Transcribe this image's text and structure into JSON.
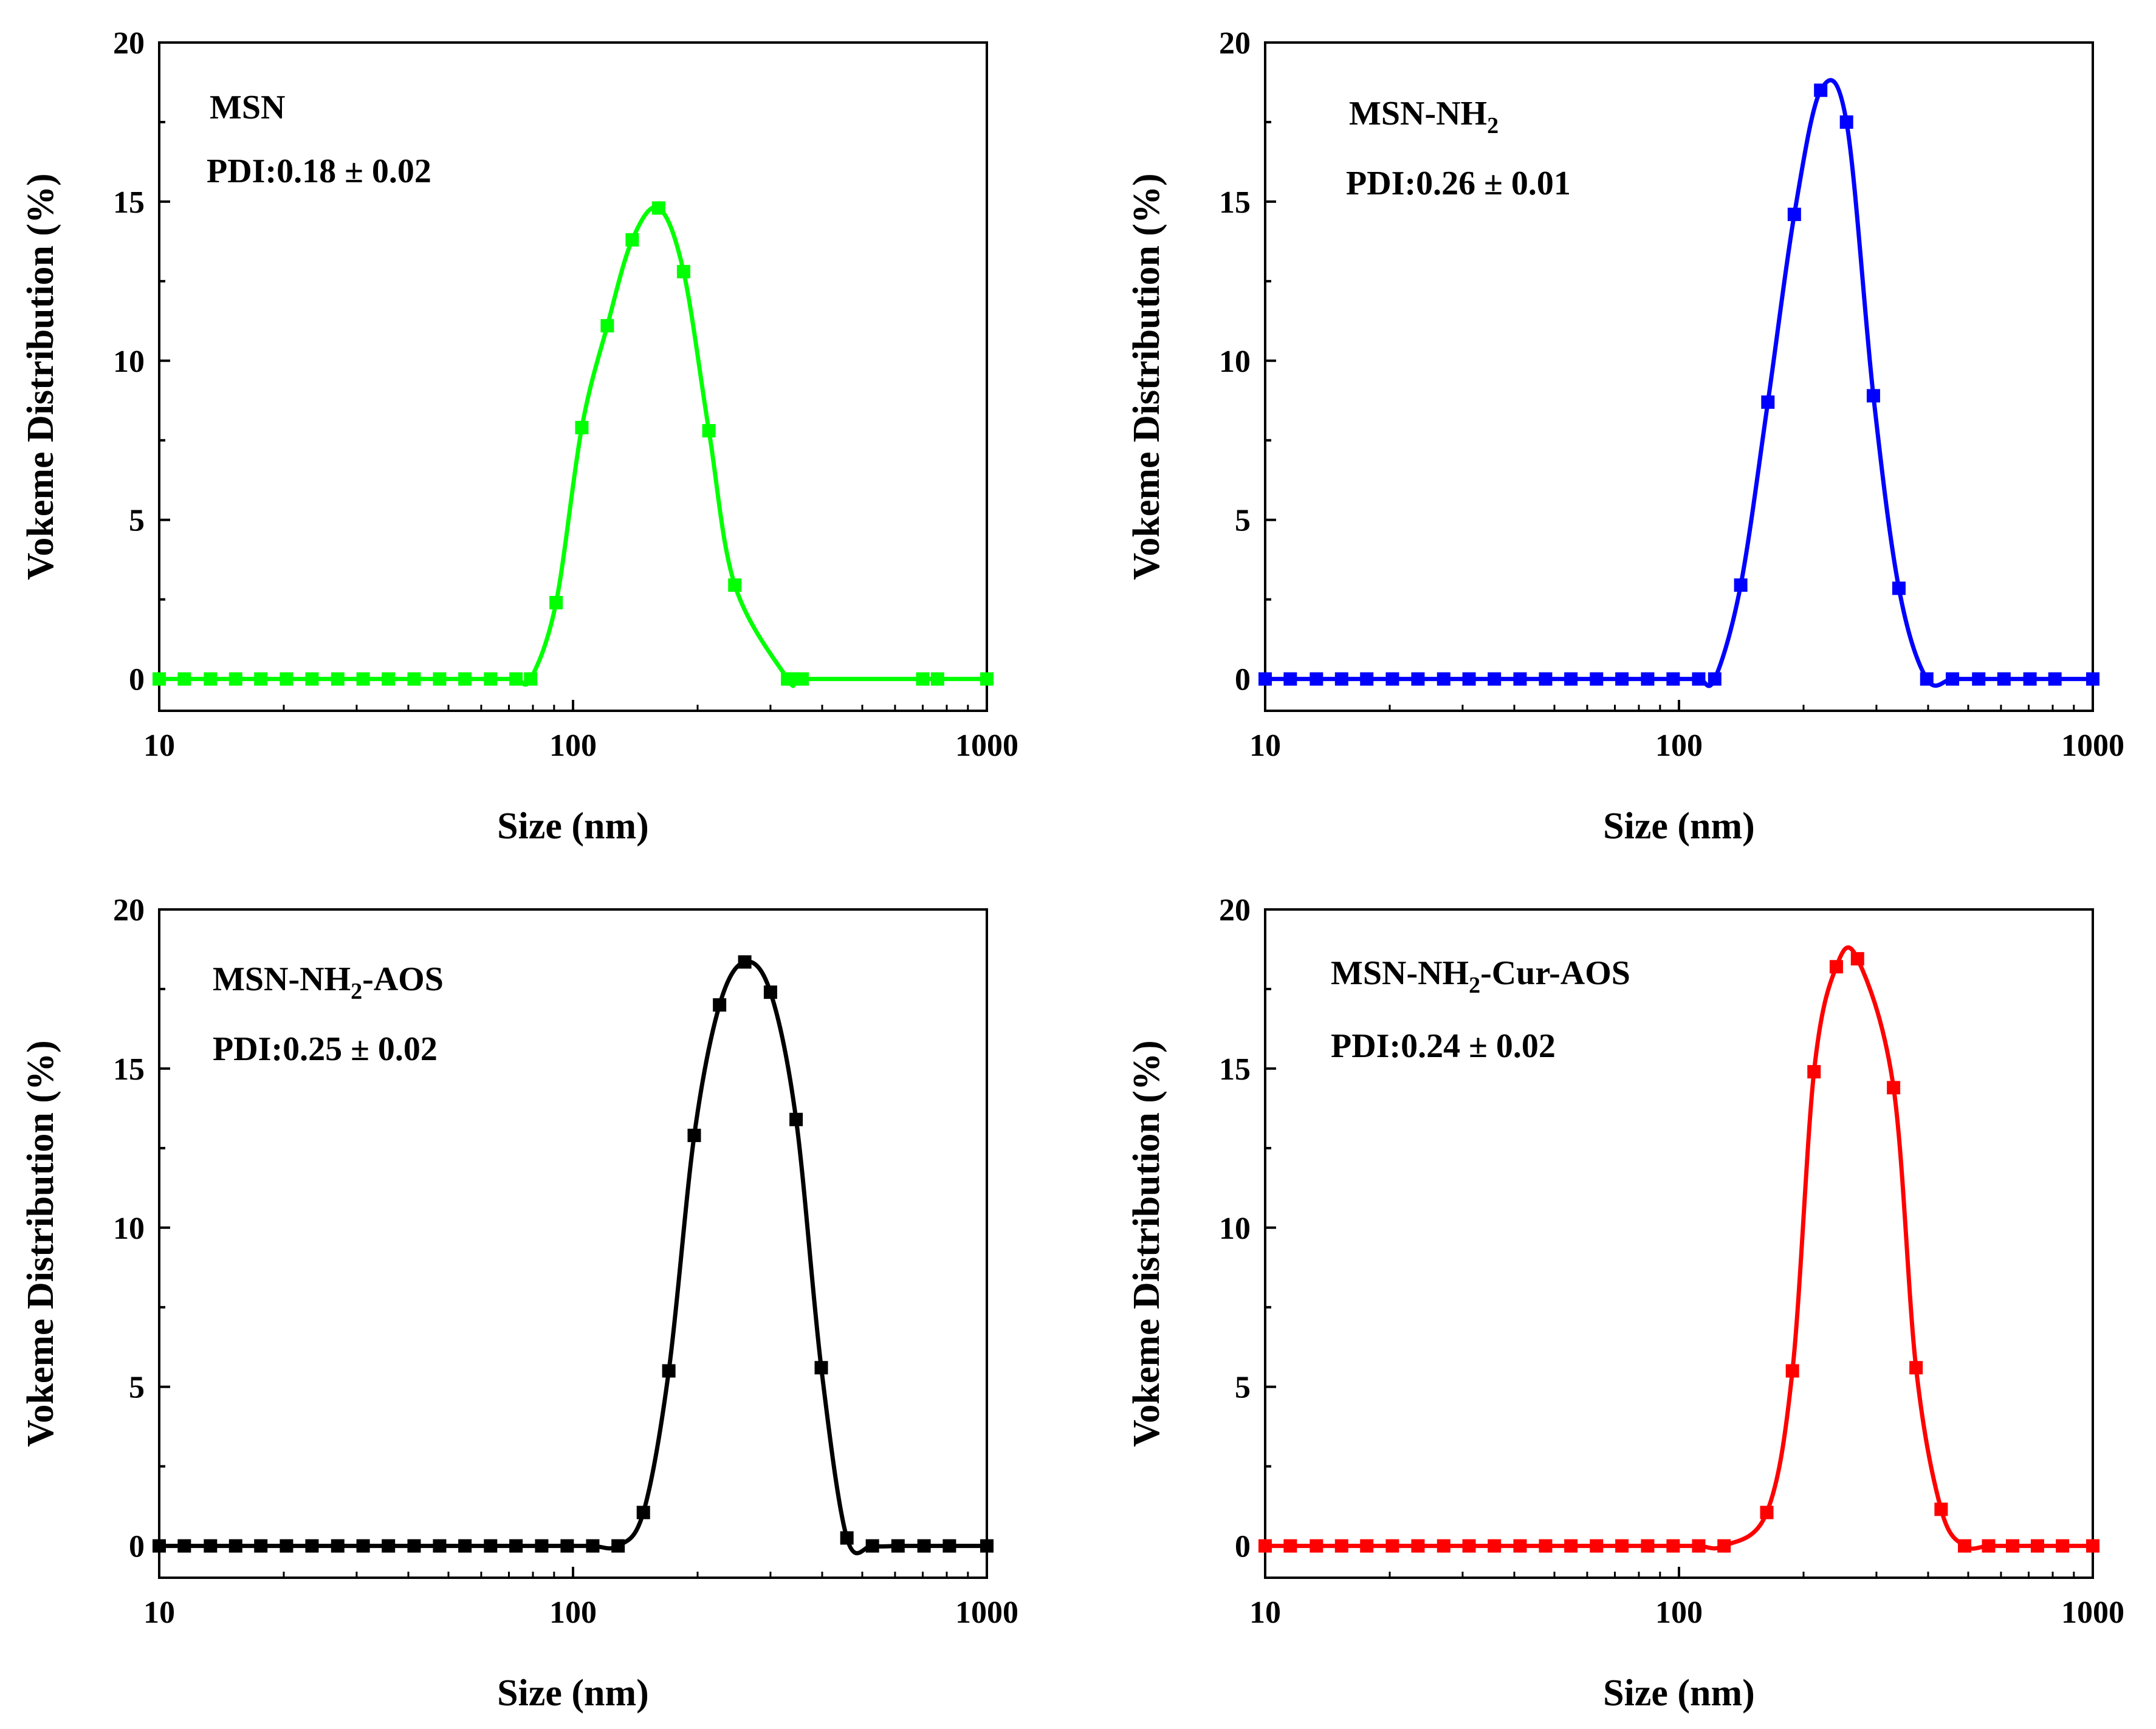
{
  "chart_data": [
    {
      "type": "scatter",
      "color": "#00ff00",
      "label": {
        "pre": "MSN",
        "sub": "",
        "post": ""
      },
      "pdi": "PDI:0.18 ± 0.02",
      "xlabel": "Size (nm)",
      "ylabel": "Vokeme Distribution (%)",
      "xscale": "log",
      "xlim": [
        10,
        1000
      ],
      "ylim": [
        -1,
        20
      ],
      "xticks": [
        "10",
        "100",
        "1000"
      ],
      "yticks": [
        "0",
        "5",
        "10",
        "15",
        "20"
      ],
      "x": [
        10,
        11.5,
        13.3,
        15.3,
        17.6,
        20.3,
        23.4,
        27,
        31.1,
        35.8,
        41.3,
        47.6,
        54.8,
        63.2,
        72.8,
        79,
        91,
        105,
        121,
        139,
        161,
        185,
        213,
        246,
        330,
        342,
        358,
        700,
        760,
        1000
      ],
      "values": [
        0,
        0,
        0,
        0,
        0,
        0,
        0,
        0,
        0,
        0,
        0,
        0,
        0,
        0,
        0,
        0,
        2.4,
        7.9,
        11.1,
        13.8,
        14.8,
        12.8,
        7.8,
        2.95,
        0,
        0,
        0,
        0,
        0,
        0
      ]
    },
    {
      "type": "scatter",
      "color": "#0000ff",
      "label": {
        "pre": "MSN-NH",
        "sub": "2",
        "post": ""
      },
      "pdi": "PDI:0.26 ± 0.01",
      "xlabel": "Size (nm)",
      "ylabel": "Vokeme Distribution (%)",
      "xscale": "log",
      "xlim": [
        10,
        1000
      ],
      "ylim": [
        -1,
        20
      ],
      "xticks": [
        "10",
        "100",
        "1000"
      ],
      "yticks": [
        "0",
        "5",
        "10",
        "15",
        "20"
      ],
      "x": [
        10,
        11.5,
        13.3,
        15.3,
        17.6,
        20.3,
        23.4,
        27,
        31.1,
        35.8,
        41.3,
        47.6,
        54.8,
        63.2,
        72.8,
        84,
        96.8,
        111.6,
        122,
        141,
        164,
        190,
        220,
        254,
        295,
        340,
        397,
        458,
        530,
        610,
        705,
        810,
        1000
      ],
      "values": [
        0,
        0,
        0,
        0,
        0,
        0,
        0,
        0,
        0,
        0,
        0,
        0,
        0,
        0,
        0,
        0,
        0,
        0,
        0,
        2.95,
        8.7,
        14.6,
        18.5,
        17.5,
        8.9,
        2.85,
        0,
        0,
        0,
        0,
        0,
        0,
        0
      ]
    },
    {
      "type": "scatter",
      "color": "#000000",
      "label": {
        "pre": "MSN-NH",
        "sub": "2",
        "post": "-AOS"
      },
      "pdi": "PDI:0.25 ± 0.02",
      "xlabel": "Size (nm)",
      "ylabel": "Vokeme Distribution (%)",
      "xscale": "log",
      "xlim": [
        10,
        1000
      ],
      "ylim": [
        -1,
        20
      ],
      "xticks": [
        "10",
        "100",
        "1000"
      ],
      "yticks": [
        "0",
        "5",
        "10",
        "15",
        "20"
      ],
      "x": [
        10,
        11.5,
        13.3,
        15.3,
        17.6,
        20.3,
        23.4,
        27,
        31.1,
        35.8,
        41.3,
        47.6,
        54.8,
        63.2,
        72.8,
        84,
        96.8,
        111.6,
        128.5,
        147.9,
        170.4,
        196.3,
        226,
        260,
        300,
        346,
        398,
        459,
        529,
        610,
        705,
        812,
        1000
      ],
      "values": [
        0,
        0,
        0,
        0,
        0,
        0,
        0,
        0,
        0,
        0,
        0,
        0,
        0,
        0,
        0,
        0,
        0,
        0,
        0,
        1.05,
        5.5,
        12.9,
        17,
        18.35,
        17.4,
        13.4,
        5.6,
        0.25,
        0,
        0,
        0,
        0,
        0
      ]
    },
    {
      "type": "scatter",
      "color": "#ff0000",
      "label": {
        "pre": "MSN-NH",
        "sub": "2",
        "post": "-Cur-AOS"
      },
      "pdi": "PDI:0.24 ± 0.02",
      "xlabel": "Size (nm)",
      "ylabel": "Vokeme Distribution (%)",
      "xscale": "log",
      "xlim": [
        10,
        1000
      ],
      "ylim": [
        -1,
        20
      ],
      "xticks": [
        "10",
        "100",
        "1000"
      ],
      "yticks": [
        "0",
        "5",
        "10",
        "15",
        "20"
      ],
      "x": [
        10,
        11.5,
        13.3,
        15.3,
        17.6,
        20.3,
        23.4,
        27,
        31.1,
        35.8,
        41.3,
        47.6,
        54.8,
        63.2,
        72.8,
        84,
        96.8,
        111.6,
        128.5,
        163,
        188,
        212,
        240,
        270,
        330,
        374,
        430,
        490,
        560,
        640,
        735,
        845,
        1000
      ],
      "values": [
        0,
        0,
        0,
        0,
        0,
        0,
        0,
        0,
        0,
        0,
        0,
        0,
        0,
        0,
        0,
        0,
        0,
        0,
        0,
        1.05,
        5.5,
        14.9,
        18.2,
        18.45,
        14.4,
        5.6,
        1.15,
        0,
        0,
        0,
        0,
        0,
        0
      ]
    }
  ]
}
